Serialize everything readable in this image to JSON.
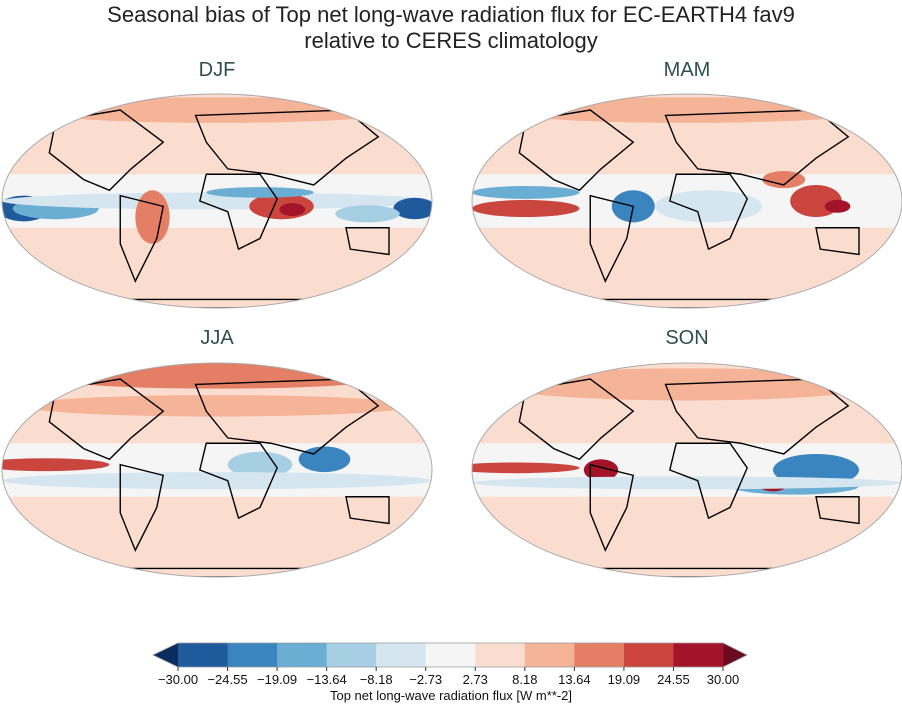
{
  "title_line1": "Seasonal bias of Top net long-wave radiation flux for EC-EARTH4 fav9",
  "title_line2": "relative to CERES climatology",
  "panels": [
    {
      "label": "DJF"
    },
    {
      "label": "MAM"
    },
    {
      "label": "JJA"
    },
    {
      "label": "SON"
    }
  ],
  "colorbar": {
    "label": "Top net long-wave radiation flux [W m**-2]",
    "ticks": [
      "−30.00",
      "−24.55",
      "−19.09",
      "−13.64",
      "−8.18",
      "−2.73",
      "2.73",
      "8.18",
      "13.64",
      "19.09",
      "24.55",
      "30.00"
    ],
    "colors": [
      "#1f5a9c",
      "#3a84bf",
      "#6aaed4",
      "#a6cfe4",
      "#d6e6f0",
      "#f5f5f5",
      "#fbddd0",
      "#f5b397",
      "#e47f65",
      "#c9453e",
      "#a3142a"
    ],
    "extend_low_color": "#0b2d5e",
    "extend_high_color": "#6b0a22",
    "extend": "both"
  }
}
